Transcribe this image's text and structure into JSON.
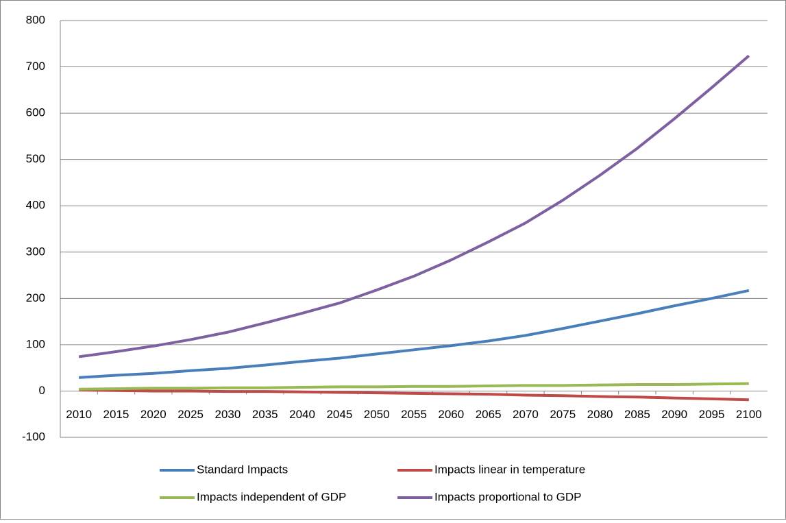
{
  "chart_data": {
    "type": "line",
    "categories": [
      "2010",
      "2015",
      "2020",
      "2025",
      "2030",
      "2035",
      "2040",
      "2045",
      "2050",
      "2055",
      "2060",
      "2065",
      "2070",
      "2075",
      "2080",
      "2085",
      "2090",
      "2095",
      "2100"
    ],
    "series": [
      {
        "name": "Standard Impacts",
        "color": "#4a7ebb",
        "values": [
          29,
          34,
          38,
          44,
          49,
          56,
          64,
          71,
          80,
          89,
          98,
          108,
          120,
          135,
          151,
          167,
          184,
          200,
          217
        ]
      },
      {
        "name": "Impacts linear in temperature",
        "color": "#be4b48",
        "values": [
          2,
          1,
          0,
          0,
          -1,
          -1,
          -2,
          -3,
          -4,
          -5,
          -6,
          -7,
          -9,
          -10,
          -12,
          -13,
          -15,
          -17,
          -19
        ]
      },
      {
        "name": "Impacts independent of GDP",
        "color": "#98b954",
        "values": [
          4,
          5,
          6,
          6,
          7,
          7,
          8,
          9,
          9,
          10,
          10,
          11,
          12,
          12,
          13,
          14,
          14,
          15,
          16
        ]
      },
      {
        "name": "Impacts proportional to GDP",
        "color": "#7d60a0",
        "values": [
          74,
          85,
          97,
          111,
          127,
          147,
          168,
          190,
          218,
          248,
          283,
          322,
          363,
          412,
          466,
          524,
          588,
          655,
          724
        ]
      }
    ],
    "ylim": [
      -100,
      800
    ],
    "yticks": [
      -100,
      0,
      100,
      200,
      300,
      400,
      500,
      600,
      700,
      800
    ],
    "grid": true
  }
}
